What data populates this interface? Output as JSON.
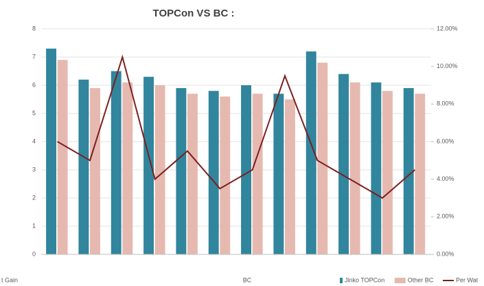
{
  "chart_data": {
    "type": "bar",
    "title": "TOPCon VS BC :",
    "categories": [
      null,
      null,
      null,
      null,
      null,
      null,
      null,
      null,
      null,
      null,
      null,
      null
    ],
    "series": [
      {
        "name": "Jinko TOPCon",
        "color": "#31859c",
        "values": [
          7.3,
          6.2,
          6.5,
          6.3,
          5.9,
          5.8,
          6.0,
          5.7,
          7.2,
          6.4,
          6.1,
          5.9
        ]
      },
      {
        "name": "Other BC",
        "color": "#e6b9b0",
        "values": [
          6.9,
          5.9,
          6.1,
          6.0,
          5.7,
          5.6,
          5.7,
          5.5,
          6.8,
          6.1,
          5.8,
          5.7
        ]
      },
      {
        "name": "Per Wat",
        "color": "#7b1f1f",
        "axis": "y2",
        "values": [
          6.0,
          5.0,
          10.5,
          4.0,
          5.5,
          3.5,
          4.5,
          9.5,
          5.0,
          4.0,
          3.0,
          4.5
        ]
      }
    ],
    "ylim": [
      0,
      8
    ],
    "yticks": [
      0,
      1,
      2,
      3,
      4,
      5,
      6,
      7,
      8
    ],
    "y2lim": [
      0,
      12
    ],
    "y2ticks": [
      {
        "value": 0,
        "label": "0.00%"
      },
      {
        "value": 2,
        "label": "2.00%"
      },
      {
        "value": 4,
        "label": "4.00%"
      },
      {
        "value": 6,
        "label": "6.00%"
      },
      {
        "value": 8,
        "label": "8.00%"
      },
      {
        "value": 10,
        "label": "10.00%"
      },
      {
        "value": 12,
        "label": "12.00%"
      }
    ],
    "grid": true,
    "annotations": [
      "t Gain",
      "BC"
    ]
  }
}
